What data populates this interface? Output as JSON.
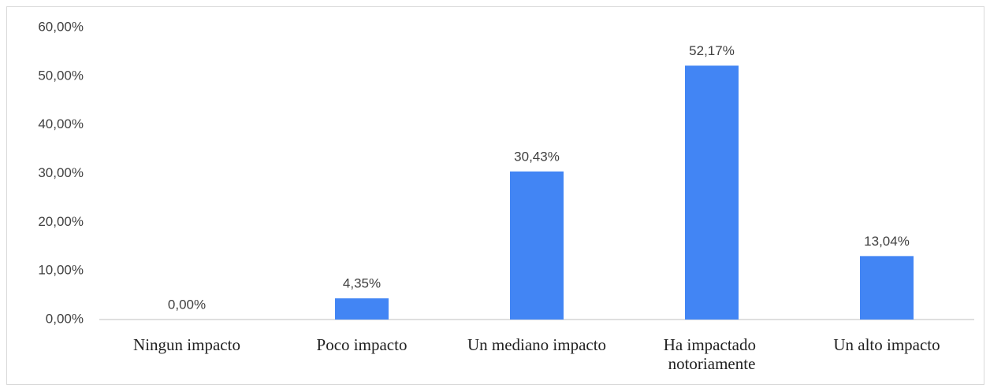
{
  "chart_data": {
    "type": "bar",
    "categories": [
      "Ningun impacto",
      "Poco impacto",
      "Un mediano impacto",
      "Ha impactado notoriamente",
      "Un alto impacto"
    ],
    "values": [
      0,
      4.35,
      30.43,
      52.17,
      13.04
    ],
    "value_labels": [
      "0,00%",
      "4,35%",
      "30,43%",
      "52,17%",
      "13,04%"
    ],
    "color": "#4285f4",
    "ylim": [
      0,
      60
    ],
    "yticks": [
      {
        "value": 0,
        "label": "0,00%"
      },
      {
        "value": 10,
        "label": "10,00%"
      },
      {
        "value": 20,
        "label": "20,00%"
      },
      {
        "value": 30,
        "label": "30,00%"
      },
      {
        "value": 40,
        "label": "40,00%"
      },
      {
        "value": 50,
        "label": "50,00%"
      },
      {
        "value": 60,
        "label": "60,00%"
      }
    ],
    "grid": false
  }
}
